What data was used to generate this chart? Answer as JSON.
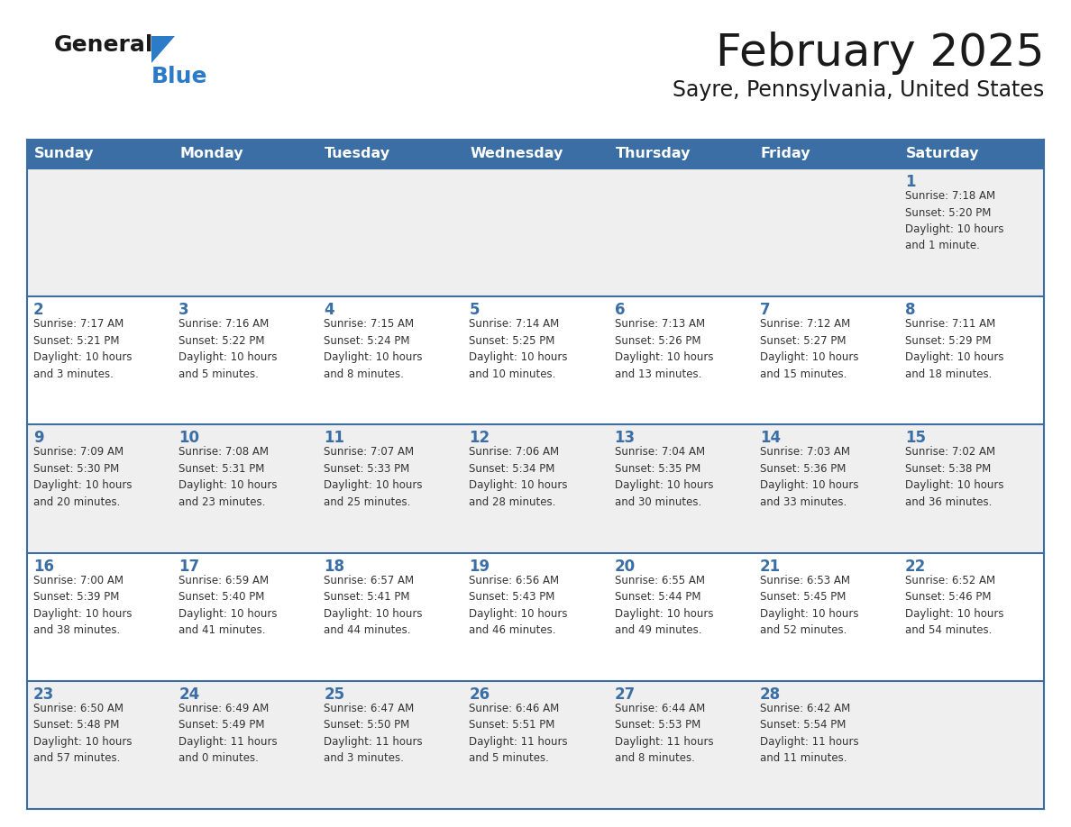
{
  "title": "February 2025",
  "subtitle": "Sayre, Pennsylvania, United States",
  "header_bg_color": "#3a6ea5",
  "header_text_color": "#ffffff",
  "day_names": [
    "Sunday",
    "Monday",
    "Tuesday",
    "Wednesday",
    "Thursday",
    "Friday",
    "Saturday"
  ],
  "row_bg_colors": [
    "#efefef",
    "#ffffff",
    "#efefef",
    "#ffffff",
    "#efefef"
  ],
  "cell_border_color": "#3a6ea5",
  "title_color": "#1a1a1a",
  "date_color": "#3a6ea5",
  "text_color": "#333333",
  "logo_general_color": "#1a1a1a",
  "logo_blue_color": "#2b7bc8",
  "weeks": [
    [
      {
        "day": null,
        "info": null
      },
      {
        "day": null,
        "info": null
      },
      {
        "day": null,
        "info": null
      },
      {
        "day": null,
        "info": null
      },
      {
        "day": null,
        "info": null
      },
      {
        "day": null,
        "info": null
      },
      {
        "day": 1,
        "info": "Sunrise: 7:18 AM\nSunset: 5:20 PM\nDaylight: 10 hours\nand 1 minute."
      }
    ],
    [
      {
        "day": 2,
        "info": "Sunrise: 7:17 AM\nSunset: 5:21 PM\nDaylight: 10 hours\nand 3 minutes."
      },
      {
        "day": 3,
        "info": "Sunrise: 7:16 AM\nSunset: 5:22 PM\nDaylight: 10 hours\nand 5 minutes."
      },
      {
        "day": 4,
        "info": "Sunrise: 7:15 AM\nSunset: 5:24 PM\nDaylight: 10 hours\nand 8 minutes."
      },
      {
        "day": 5,
        "info": "Sunrise: 7:14 AM\nSunset: 5:25 PM\nDaylight: 10 hours\nand 10 minutes."
      },
      {
        "day": 6,
        "info": "Sunrise: 7:13 AM\nSunset: 5:26 PM\nDaylight: 10 hours\nand 13 minutes."
      },
      {
        "day": 7,
        "info": "Sunrise: 7:12 AM\nSunset: 5:27 PM\nDaylight: 10 hours\nand 15 minutes."
      },
      {
        "day": 8,
        "info": "Sunrise: 7:11 AM\nSunset: 5:29 PM\nDaylight: 10 hours\nand 18 minutes."
      }
    ],
    [
      {
        "day": 9,
        "info": "Sunrise: 7:09 AM\nSunset: 5:30 PM\nDaylight: 10 hours\nand 20 minutes."
      },
      {
        "day": 10,
        "info": "Sunrise: 7:08 AM\nSunset: 5:31 PM\nDaylight: 10 hours\nand 23 minutes."
      },
      {
        "day": 11,
        "info": "Sunrise: 7:07 AM\nSunset: 5:33 PM\nDaylight: 10 hours\nand 25 minutes."
      },
      {
        "day": 12,
        "info": "Sunrise: 7:06 AM\nSunset: 5:34 PM\nDaylight: 10 hours\nand 28 minutes."
      },
      {
        "day": 13,
        "info": "Sunrise: 7:04 AM\nSunset: 5:35 PM\nDaylight: 10 hours\nand 30 minutes."
      },
      {
        "day": 14,
        "info": "Sunrise: 7:03 AM\nSunset: 5:36 PM\nDaylight: 10 hours\nand 33 minutes."
      },
      {
        "day": 15,
        "info": "Sunrise: 7:02 AM\nSunset: 5:38 PM\nDaylight: 10 hours\nand 36 minutes."
      }
    ],
    [
      {
        "day": 16,
        "info": "Sunrise: 7:00 AM\nSunset: 5:39 PM\nDaylight: 10 hours\nand 38 minutes."
      },
      {
        "day": 17,
        "info": "Sunrise: 6:59 AM\nSunset: 5:40 PM\nDaylight: 10 hours\nand 41 minutes."
      },
      {
        "day": 18,
        "info": "Sunrise: 6:57 AM\nSunset: 5:41 PM\nDaylight: 10 hours\nand 44 minutes."
      },
      {
        "day": 19,
        "info": "Sunrise: 6:56 AM\nSunset: 5:43 PM\nDaylight: 10 hours\nand 46 minutes."
      },
      {
        "day": 20,
        "info": "Sunrise: 6:55 AM\nSunset: 5:44 PM\nDaylight: 10 hours\nand 49 minutes."
      },
      {
        "day": 21,
        "info": "Sunrise: 6:53 AM\nSunset: 5:45 PM\nDaylight: 10 hours\nand 52 minutes."
      },
      {
        "day": 22,
        "info": "Sunrise: 6:52 AM\nSunset: 5:46 PM\nDaylight: 10 hours\nand 54 minutes."
      }
    ],
    [
      {
        "day": 23,
        "info": "Sunrise: 6:50 AM\nSunset: 5:48 PM\nDaylight: 10 hours\nand 57 minutes."
      },
      {
        "day": 24,
        "info": "Sunrise: 6:49 AM\nSunset: 5:49 PM\nDaylight: 11 hours\nand 0 minutes."
      },
      {
        "day": 25,
        "info": "Sunrise: 6:47 AM\nSunset: 5:50 PM\nDaylight: 11 hours\nand 3 minutes."
      },
      {
        "day": 26,
        "info": "Sunrise: 6:46 AM\nSunset: 5:51 PM\nDaylight: 11 hours\nand 5 minutes."
      },
      {
        "day": 27,
        "info": "Sunrise: 6:44 AM\nSunset: 5:53 PM\nDaylight: 11 hours\nand 8 minutes."
      },
      {
        "day": 28,
        "info": "Sunrise: 6:42 AM\nSunset: 5:54 PM\nDaylight: 11 hours\nand 11 minutes."
      },
      {
        "day": null,
        "info": null
      }
    ]
  ]
}
